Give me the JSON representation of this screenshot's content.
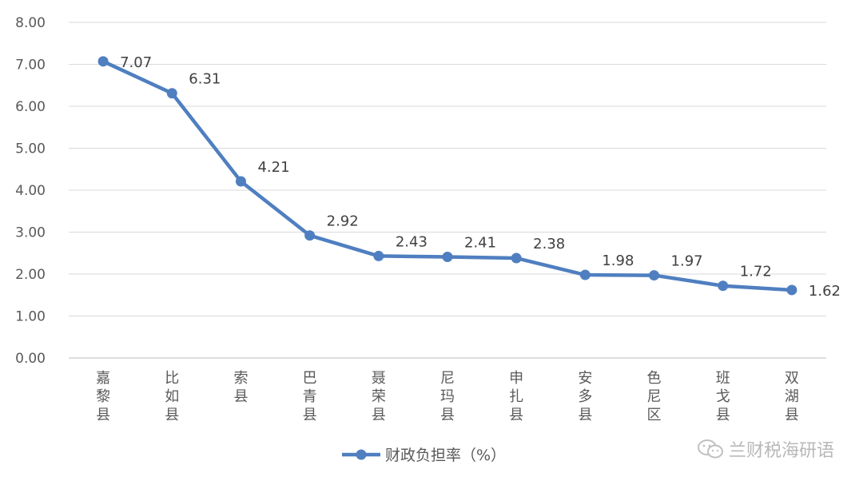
{
  "chart_data": {
    "type": "line",
    "categories": [
      "嘉黎县",
      "比如县",
      "索县",
      "巴青县",
      "聂荣县",
      "尼玛县",
      "申扎县",
      "安多县",
      "色尼区",
      "班戈县",
      "双湖县"
    ],
    "series": [
      {
        "name": "财政负担率（%）",
        "values": [
          7.07,
          6.31,
          4.21,
          2.92,
          2.43,
          2.41,
          2.38,
          1.98,
          1.97,
          1.72,
          1.62
        ],
        "labels": [
          "7.07",
          "6.31",
          "4.21",
          "2.92",
          "2.43",
          "2.41",
          "2.38",
          "1.98",
          "1.97",
          "1.72",
          "1.62"
        ],
        "color": "#4f7fc0"
      }
    ],
    "ylim": [
      0,
      8
    ],
    "yticks": [
      "0.00",
      "1.00",
      "2.00",
      "3.00",
      "4.00",
      "5.00",
      "6.00",
      "7.00",
      "8.00"
    ],
    "grid": true,
    "legend": "bottom",
    "title": "",
    "xlabel": "",
    "ylabel": ""
  },
  "watermark": {
    "text": "兰财税海研语",
    "icon": "wechat-icon"
  }
}
